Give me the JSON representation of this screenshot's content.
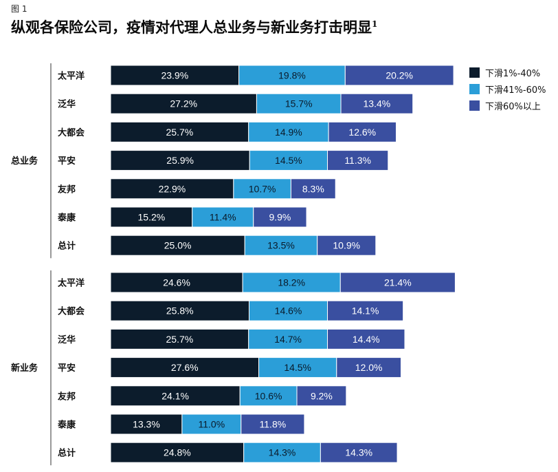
{
  "figure_label": "图 1",
  "title": "纵观各保险公司，疫情对代理人总业务与新业务打击明显",
  "title_sup": "1",
  "chart_data": {
    "type": "bar",
    "orientation": "horizontal",
    "stacked": true,
    "value_unit": "%",
    "xlim": [
      0,
      100
    ],
    "grid": false,
    "legend_position": "top-right",
    "series": [
      {
        "name": "下滑1%-40%",
        "color": "#0c1c2c"
      },
      {
        "name": "下滑41%-60%",
        "color": "#2b9ed8"
      },
      {
        "name": "下滑60%以上",
        "color": "#3a4fa0"
      }
    ],
    "groups": [
      {
        "name": "总业务",
        "categories": [
          "太平洋",
          "泛华",
          "大都会",
          "平安",
          "友邦",
          "泰康",
          "总计"
        ],
        "values": [
          [
            23.9,
            19.8,
            20.2
          ],
          [
            27.2,
            15.7,
            13.4
          ],
          [
            25.7,
            14.9,
            12.6
          ],
          [
            25.9,
            14.5,
            11.3
          ],
          [
            22.9,
            10.7,
            8.3
          ],
          [
            15.2,
            11.4,
            9.9
          ],
          [
            25.0,
            13.5,
            10.9
          ]
        ]
      },
      {
        "name": "新业务",
        "categories": [
          "太平洋",
          "大都会",
          "泛华",
          "平安",
          "友邦",
          "泰康",
          "总计"
        ],
        "values": [
          [
            24.6,
            18.2,
            21.4
          ],
          [
            25.8,
            14.6,
            14.1
          ],
          [
            25.7,
            14.7,
            14.4
          ],
          [
            27.6,
            14.5,
            12.0
          ],
          [
            24.1,
            10.6,
            9.2
          ],
          [
            13.3,
            11.0,
            11.8
          ],
          [
            24.8,
            14.3,
            14.3
          ]
        ]
      }
    ]
  }
}
